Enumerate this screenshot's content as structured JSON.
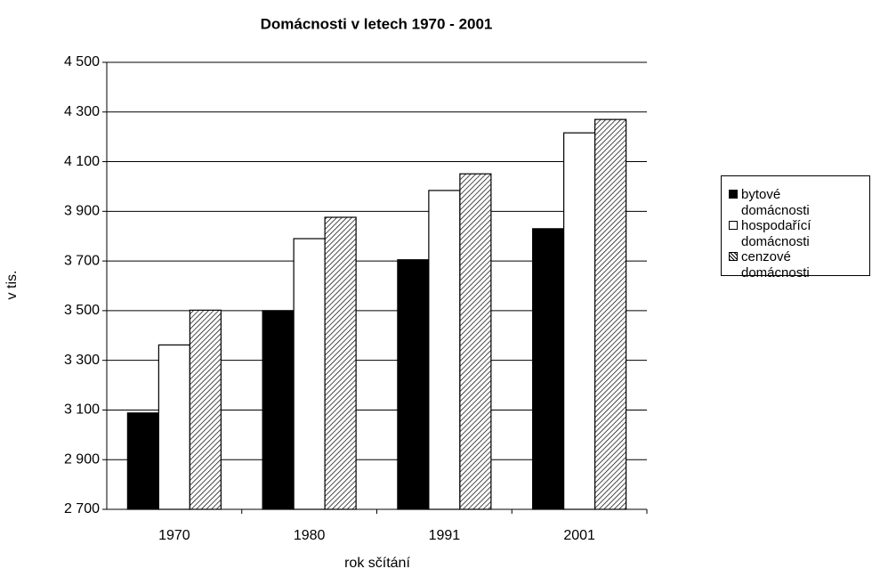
{
  "chart_data": {
    "type": "bar",
    "title": "Domácnosti v letech 1970 - 2001",
    "x_label": "rok sčítání",
    "y_label": "v tis.",
    "categories": [
      "1970",
      "1980",
      "1991",
      "2001"
    ],
    "series": [
      {
        "name": "bytové domácnosti",
        "color": "#000000",
        "values": [
          3088,
          3500,
          3705,
          3830
        ]
      },
      {
        "name": "hospodařící domácnosti",
        "color": "#ffffff",
        "values": [
          3362,
          3790,
          3984,
          4216
        ]
      },
      {
        "name": "cenzové domácnosti",
        "color": "#ffffff",
        "hatch": true,
        "values": [
          3502,
          3876,
          4051,
          4270
        ]
      }
    ],
    "ylim": [
      2700,
      4500
    ],
    "yticks": [
      {
        "value": 2700,
        "label": "2 700"
      },
      {
        "value": 2900,
        "label": "2 900"
      },
      {
        "value": 3100,
        "label": "3 100"
      },
      {
        "value": 3300,
        "label": "3 300"
      },
      {
        "value": 3500,
        "label": "3 500"
      },
      {
        "value": 3700,
        "label": "3 700"
      },
      {
        "value": 3900,
        "label": "3 900"
      },
      {
        "value": 4100,
        "label": "4 100"
      },
      {
        "value": 4300,
        "label": "4 300"
      },
      {
        "value": 4500,
        "label": "4 500"
      }
    ],
    "grid": true,
    "legend": "right"
  }
}
